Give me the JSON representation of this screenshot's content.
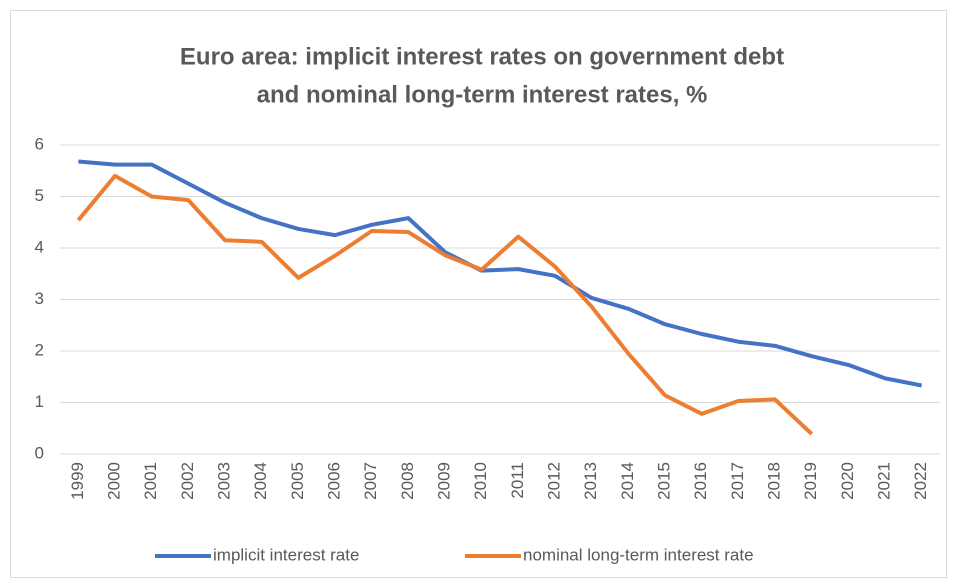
{
  "chart_data": {
    "type": "line",
    "title": [
      "Euro area: implicit interest rates on government debt",
      "and nominal long-term interest rates, %"
    ],
    "categories": [
      "1999",
      "2000",
      "2001",
      "2002",
      "2003",
      "2004",
      "2005",
      "2006",
      "2007",
      "2008",
      "2009",
      "2010",
      "2011",
      "2012",
      "2013",
      "2014",
      "2015",
      "2016",
      "2017",
      "2018",
      "2019",
      "2020",
      "2021",
      "2022"
    ],
    "series": [
      {
        "name": "implicit interest rate",
        "color": "#4472c4",
        "values": [
          5.68,
          5.62,
          5.62,
          5.25,
          4.88,
          4.58,
          4.37,
          4.25,
          4.45,
          4.58,
          3.92,
          3.56,
          3.59,
          3.46,
          3.03,
          2.82,
          2.52,
          2.33,
          2.18,
          2.1,
          1.9,
          1.73,
          1.47,
          1.33
        ]
      },
      {
        "name": "nominal long-term interest rate",
        "color": "#ed7d31",
        "values": [
          4.54,
          5.4,
          5.0,
          4.93,
          4.15,
          4.12,
          3.42,
          3.85,
          4.33,
          4.31,
          3.86,
          3.58,
          4.22,
          3.64,
          2.86,
          1.95,
          1.14,
          0.78,
          1.03,
          1.06,
          0.39,
          null,
          null,
          null
        ]
      }
    ],
    "ylim": [
      0,
      6
    ],
    "yticks": [
      0,
      1,
      2,
      3,
      4,
      5,
      6
    ],
    "grid": true,
    "legend": "bottom"
  }
}
